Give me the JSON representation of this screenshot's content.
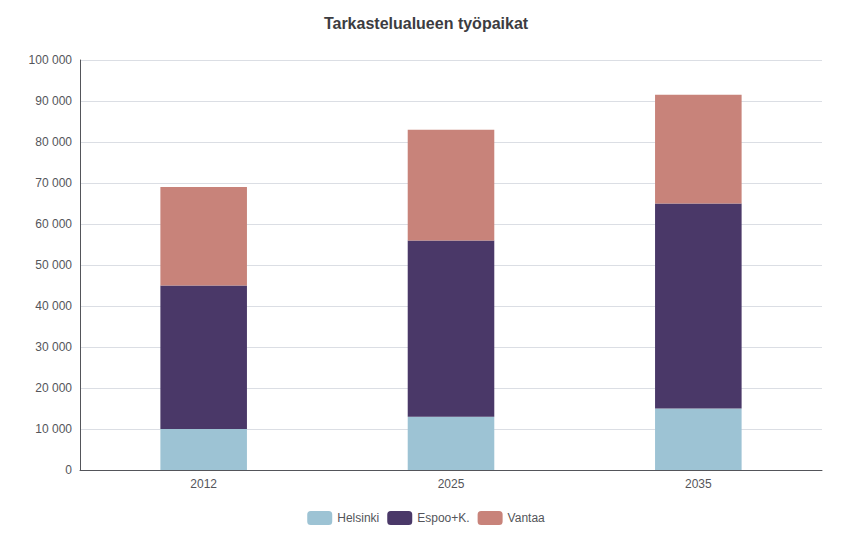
{
  "chart_data": {
    "type": "bar",
    "title": "Tarkastelualueen työpaikat",
    "categories": [
      "2012",
      "2025",
      "2035"
    ],
    "series": [
      {
        "name": "Helsinki",
        "color": "#9dc3d4",
        "values": [
          10000,
          13000,
          15000
        ]
      },
      {
        "name": "Espoo+K.",
        "color": "#4a3868",
        "values": [
          35000,
          43000,
          50000
        ]
      },
      {
        "name": "Vantaa",
        "color": "#c8837a",
        "values": [
          24000,
          27000,
          26500
        ]
      }
    ],
    "stacked": true,
    "ylim": [
      0,
      100000
    ],
    "yticks": [
      0,
      {
        "value": 10000,
        "label": "10 000"
      },
      {
        "value": 20000,
        "label": "20 000"
      },
      {
        "value": 30000,
        "label": "30 000"
      },
      {
        "value": 40000,
        "label": "40 000"
      },
      {
        "value": 50000,
        "label": "50 000"
      },
      {
        "value": 60000,
        "label": "60 000"
      },
      {
        "value": 70000,
        "label": "70 000"
      },
      {
        "value": 80000,
        "label": "80 000"
      },
      {
        "value": 90000,
        "label": "90 000"
      },
      {
        "value": 100000,
        "label": "100 000"
      }
    ],
    "grid": true,
    "legend": "bottom"
  }
}
